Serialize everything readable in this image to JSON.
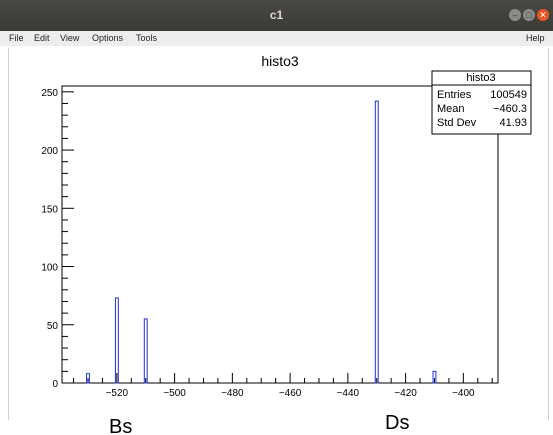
{
  "window": {
    "title": "c1",
    "controls": {
      "minimize_icon": "–",
      "maximize_icon": "□",
      "close_icon": "✕"
    }
  },
  "menu": {
    "file": "File",
    "edit": "Edit",
    "view": "View",
    "options": "Options",
    "tools": "Tools",
    "help": "Help"
  },
  "stats": {
    "title": "histo3",
    "rows": [
      {
        "label": "Entries",
        "value": "100549"
      },
      {
        "label": "Mean",
        "value": "−460.3"
      },
      {
        "label": "Std Dev",
        "value": "41.93"
      }
    ]
  },
  "annotations": {
    "left": "Bs",
    "right": "Ds"
  },
  "colors": {
    "bar_stroke": "#1f2fd6",
    "titlebar": "#3b3a36",
    "menubar": "#ededed"
  },
  "chart_data": {
    "type": "bar",
    "title": "histo3",
    "xlim": [
      -539,
      -388
    ],
    "ylim": [
      0,
      255
    ],
    "x_ticks": [
      -520,
      -500,
      -480,
      -460,
      -440,
      -420,
      -400
    ],
    "x_tick_labels": [
      "−520",
      "−500",
      "−480",
      "−460",
      "−440",
      "−420",
      "−400"
    ],
    "y_ticks": [
      0,
      50,
      100,
      150,
      200,
      250
    ],
    "y_tick_labels": [
      "0",
      "50",
      "100",
      "150",
      "200",
      "250"
    ],
    "bin_width": 1,
    "bins": [
      {
        "x": -530,
        "value": 8
      },
      {
        "x": -520,
        "value": 73
      },
      {
        "x": -510,
        "value": 55
      },
      {
        "x": -430,
        "value": 242
      },
      {
        "x": -410,
        "value": 10
      }
    ],
    "grid": false,
    "legend": "top-right"
  }
}
